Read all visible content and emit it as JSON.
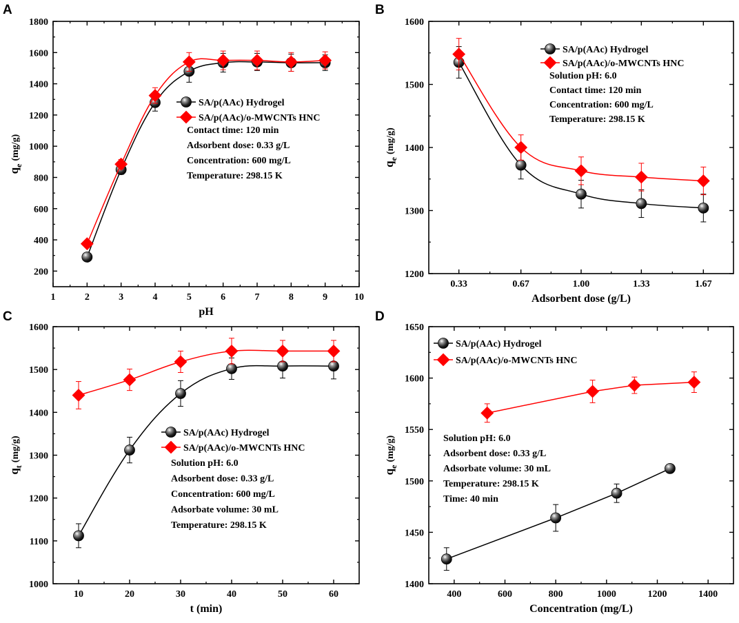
{
  "colors": {
    "hydrogel": "#000000",
    "hnc": "#ff0000",
    "axis": "#000000"
  },
  "chart_data": [
    {
      "panel": "A",
      "type": "line",
      "xlabel": "pH",
      "ylabel_main": "q",
      "ylabel_sub": "e",
      "ylabel_unit": "(mg/g)",
      "xlim": [
        1,
        10
      ],
      "ylim": [
        100,
        1800
      ],
      "xticks": [
        {
          "v": 1,
          "label": "1"
        },
        {
          "v": 2,
          "label": "2"
        },
        {
          "v": 3,
          "label": "3"
        },
        {
          "v": 4,
          "label": "4"
        },
        {
          "v": 5,
          "label": "5"
        },
        {
          "v": 6,
          "label": "6"
        },
        {
          "v": 7,
          "label": "7"
        },
        {
          "v": 8,
          "label": "8"
        },
        {
          "v": 9,
          "label": "9"
        },
        {
          "v": 10,
          "label": "10"
        }
      ],
      "yticks": [
        {
          "v": 200,
          "label": "200"
        },
        {
          "v": 400,
          "label": "400"
        },
        {
          "v": 600,
          "label": "600"
        },
        {
          "v": 800,
          "label": "800"
        },
        {
          "v": 1000,
          "label": "1000"
        },
        {
          "v": 1200,
          "label": "1200"
        },
        {
          "v": 1400,
          "label": "1400"
        },
        {
          "v": 1600,
          "label": "1600"
        },
        {
          "v": 1800,
          "label": "1800"
        }
      ],
      "series": [
        {
          "name": "SA/p(AAc) Hydrogel",
          "marker": "sphere",
          "x": [
            2,
            3,
            4,
            5,
            6,
            7,
            8,
            9
          ],
          "y": [
            290,
            850,
            1280,
            1480,
            1535,
            1540,
            1535,
            1535
          ],
          "err": [
            0,
            30,
            55,
            70,
            60,
            55,
            55,
            50
          ]
        },
        {
          "name": "SA/p(AAc)/o-MWCNTs HNC",
          "marker": "diamond",
          "x": [
            2,
            3,
            4,
            5,
            6,
            7,
            8,
            9
          ],
          "y": [
            375,
            885,
            1325,
            1540,
            1550,
            1550,
            1540,
            1550
          ],
          "err": [
            0,
            30,
            50,
            60,
            60,
            60,
            60,
            55
          ]
        }
      ],
      "conditions": [
        "Contact time: 120 min",
        "Adsorbent dose: 0.33 g/L",
        "Concentration: 600 mg/L",
        "Temperature: 298.15 K"
      ]
    },
    {
      "panel": "B",
      "type": "line",
      "xlabel": "Adsorbent dose (g/L)",
      "ylabel_main": "q",
      "ylabel_sub": "e",
      "ylabel_unit": "(mg/g)",
      "xlim": [
        0.165,
        1.835
      ],
      "ylim": [
        1200,
        1600
      ],
      "xticks": [
        {
          "v": 0.33,
          "label": "0.33"
        },
        {
          "v": 0.67,
          "label": "0.67"
        },
        {
          "v": 1.0,
          "label": "1.00"
        },
        {
          "v": 1.33,
          "label": "1.33"
        },
        {
          "v": 1.67,
          "label": "1.67"
        }
      ],
      "yticks": [
        {
          "v": 1200,
          "label": "1200"
        },
        {
          "v": 1300,
          "label": "1300"
        },
        {
          "v": 1400,
          "label": "1400"
        },
        {
          "v": 1500,
          "label": "1500"
        },
        {
          "v": 1600,
          "label": "1600"
        }
      ],
      "series": [
        {
          "name": "SA/p(AAc) Hydrogel",
          "marker": "sphere",
          "x": [
            0.33,
            0.67,
            1.0,
            1.33,
            1.67
          ],
          "y": [
            1535,
            1372,
            1326,
            1311,
            1304
          ],
          "err": [
            25,
            22,
            22,
            22,
            22
          ]
        },
        {
          "name": "SA/p(AAc)/o-MWCNTs HNC",
          "marker": "diamond",
          "x": [
            0.33,
            0.67,
            1.0,
            1.33,
            1.67
          ],
          "y": [
            1548,
            1400,
            1363,
            1353,
            1347
          ],
          "err": [
            25,
            20,
            22,
            22,
            22
          ]
        }
      ],
      "conditions": [
        "Solution pH: 6.0",
        "Contact time: 120 min",
        "Concentration: 600 mg/L",
        "Temperature: 298.15 K"
      ]
    },
    {
      "panel": "C",
      "type": "line",
      "xlabel": "t (min)",
      "ylabel_main": "q",
      "ylabel_sub": "t",
      "ylabel_unit": "(mg/g)",
      "xlim": [
        5,
        65
      ],
      "ylim": [
        1000,
        1600
      ],
      "xticks": [
        {
          "v": 10,
          "label": "10"
        },
        {
          "v": 20,
          "label": "20"
        },
        {
          "v": 30,
          "label": "30"
        },
        {
          "v": 40,
          "label": "40"
        },
        {
          "v": 50,
          "label": "50"
        },
        {
          "v": 60,
          "label": "60"
        }
      ],
      "yticks": [
        {
          "v": 1000,
          "label": "1000"
        },
        {
          "v": 1100,
          "label": "1100"
        },
        {
          "v": 1200,
          "label": "1200"
        },
        {
          "v": 1300,
          "label": "1300"
        },
        {
          "v": 1400,
          "label": "1400"
        },
        {
          "v": 1500,
          "label": "1500"
        },
        {
          "v": 1600,
          "label": "1600"
        }
      ],
      "series": [
        {
          "name": "SA/p(AAc) Hydrogel",
          "marker": "sphere",
          "x": [
            10,
            20,
            30,
            40,
            50,
            60
          ],
          "y": [
            1112,
            1312,
            1444,
            1502,
            1508,
            1508
          ],
          "err": [
            28,
            30,
            30,
            25,
            28,
            30
          ]
        },
        {
          "name": "SA/p(AAc)/o-MWCNTs HNC",
          "marker": "diamond",
          "x": [
            10,
            20,
            30,
            40,
            50,
            60
          ],
          "y": [
            1440,
            1476,
            1518,
            1543,
            1543,
            1543
          ],
          "err": [
            32,
            25,
            25,
            30,
            25,
            25
          ]
        }
      ],
      "conditions": [
        "Solution pH: 6.0",
        "Adsorbent dose: 0.33 g/L",
        "Concentration: 600 mg/L",
        "Adsorbate volume: 30 mL",
        "Temperature: 298.15 K"
      ]
    },
    {
      "panel": "D",
      "type": "line",
      "xlabel": "Concentration (mg/L)",
      "ylabel_main": "q",
      "ylabel_sub": "e",
      "ylabel_unit": "(mg/g)",
      "xlim": [
        300,
        1500
      ],
      "ylim": [
        1400,
        1650
      ],
      "xticks": [
        {
          "v": 400,
          "label": "400"
        },
        {
          "v": 600,
          "label": "600"
        },
        {
          "v": 800,
          "label": "800"
        },
        {
          "v": 1000,
          "label": "1000"
        },
        {
          "v": 1200,
          "label": "1200"
        },
        {
          "v": 1400,
          "label": "1400"
        }
      ],
      "yticks": [
        {
          "v": 1400,
          "label": "1400"
        },
        {
          "v": 1450,
          "label": "1450"
        },
        {
          "v": 1500,
          "label": "1500"
        },
        {
          "v": 1550,
          "label": "1550"
        },
        {
          "v": 1600,
          "label": "1600"
        },
        {
          "v": 1650,
          "label": "1650"
        }
      ],
      "series": [
        {
          "name": "SA/p(AAc) Hydrogel",
          "marker": "sphere",
          "x": [
            370,
            800,
            1040,
            1250
          ],
          "y": [
            1424,
            1464,
            1488,
            1512
          ],
          "err": [
            11,
            13,
            9,
            0
          ]
        },
        {
          "name": "SA/p(AAc)/o-MWCNTs HNC",
          "marker": "diamond",
          "x": [
            530,
            945,
            1110,
            1345
          ],
          "y": [
            1566,
            1587,
            1593,
            1596
          ],
          "err": [
            9,
            11,
            8,
            10
          ]
        }
      ],
      "conditions": [
        "Solution pH: 6.0",
        "Adsorbent dose: 0.33 g/L",
        "Adsorbate volume: 30 mL",
        "Temperature: 298.15 K",
        "Time: 40 min"
      ]
    }
  ]
}
